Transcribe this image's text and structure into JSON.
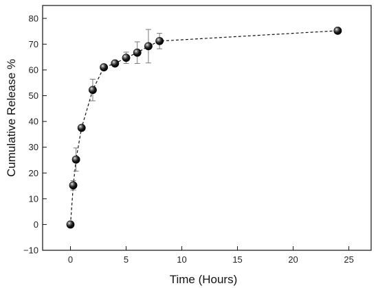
{
  "chart_data": {
    "type": "scatter",
    "title": "",
    "xlabel": "Time (Hours)",
    "ylabel": "Cumulative Release %",
    "xlim": [
      -2.5,
      27
    ],
    "ylim": [
      -10,
      85
    ],
    "xticks": [
      0,
      5,
      10,
      15,
      20,
      25
    ],
    "yticks": [
      -10,
      0,
      10,
      20,
      30,
      40,
      50,
      60,
      70,
      80
    ],
    "xtick_labels": [
      "0",
      "5",
      "10",
      "15",
      "20",
      "25"
    ],
    "ytick_labels": [
      "−10",
      "0",
      "10",
      "20",
      "30",
      "40",
      "50",
      "60",
      "70",
      "80"
    ],
    "line_style": "dashed",
    "marker": "black sphere",
    "grid": false,
    "series": [
      {
        "x": [
          0,
          0.25,
          0.5,
          1,
          2,
          3,
          4,
          5,
          6,
          7,
          8,
          24
        ],
        "y": [
          0,
          15.2,
          25.2,
          37.5,
          52.2,
          61.0,
          62.5,
          64.7,
          66.7,
          69.2,
          71.2,
          75.2
        ],
        "error": [
          0,
          1.8,
          4.5,
          0,
          4.2,
          0,
          0,
          2.2,
          4.2,
          6.5,
          3.0,
          0
        ]
      }
    ]
  }
}
